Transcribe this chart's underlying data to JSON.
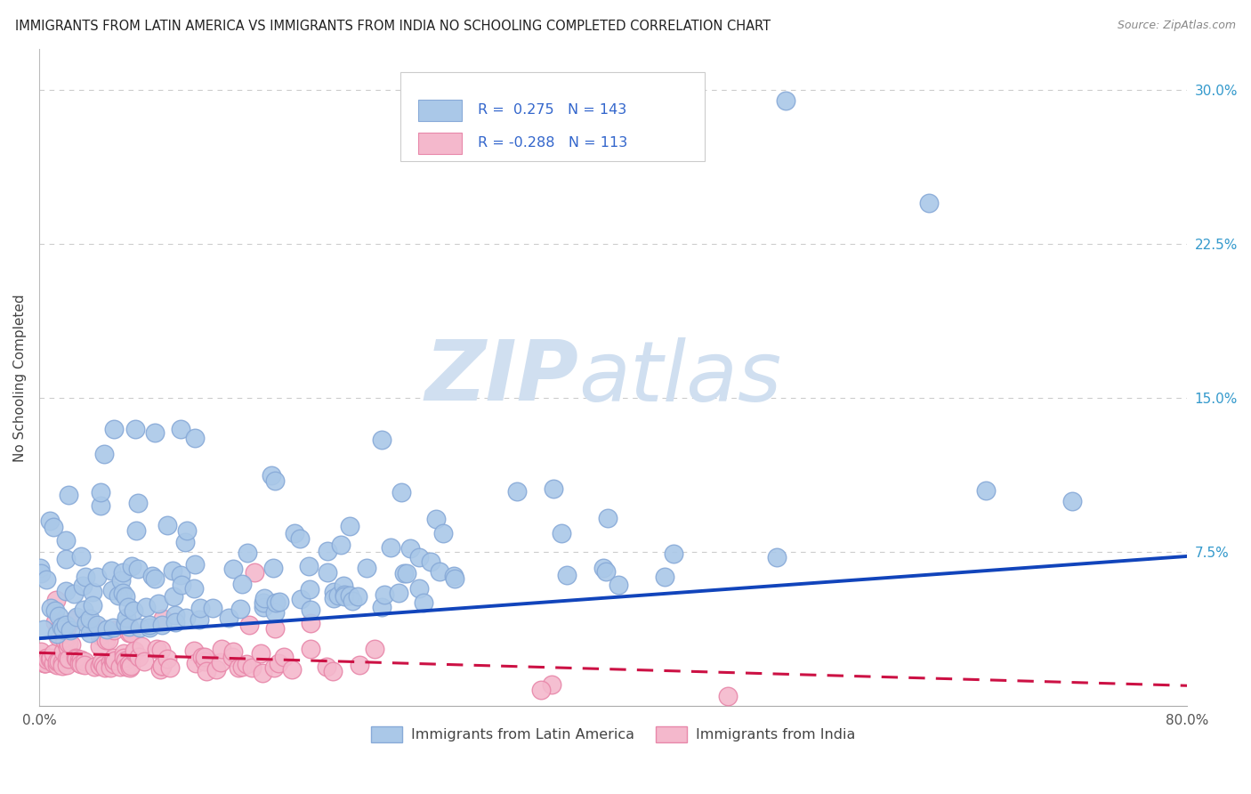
{
  "title": "IMMIGRANTS FROM LATIN AMERICA VS IMMIGRANTS FROM INDIA NO SCHOOLING COMPLETED CORRELATION CHART",
  "source": "Source: ZipAtlas.com",
  "ylabel": "No Schooling Completed",
  "xlim": [
    0.0,
    0.8
  ],
  "ylim": [
    0.0,
    0.32
  ],
  "series1_color": "#aac8e8",
  "series1_edge": "#88aad8",
  "series1_label": "Immigrants from Latin America",
  "series1_R": "0.275",
  "series1_N": "143",
  "series2_color": "#f4b8cc",
  "series2_edge": "#e888aa",
  "series2_label": "Immigrants from India",
  "series2_R": "-0.288",
  "series2_N": "113",
  "trend1_color": "#1144bb",
  "trend2_color": "#cc1144",
  "trend1_x0": 0.0,
  "trend1_y0": 0.033,
  "trend1_x1": 0.8,
  "trend1_y1": 0.073,
  "trend2_x0": 0.0,
  "trend2_y0": 0.026,
  "trend2_x1": 0.8,
  "trend2_y1": 0.01,
  "watermark_zip": "ZIP",
  "watermark_atlas": "atlas",
  "watermark_color": "#d0dff0",
  "legend_text_color1": "#3366cc",
  "legend_text_color2": "#333333",
  "background_color": "#ffffff",
  "grid_color": "#cccccc",
  "title_fontsize": 10.5,
  "seed": 12345
}
